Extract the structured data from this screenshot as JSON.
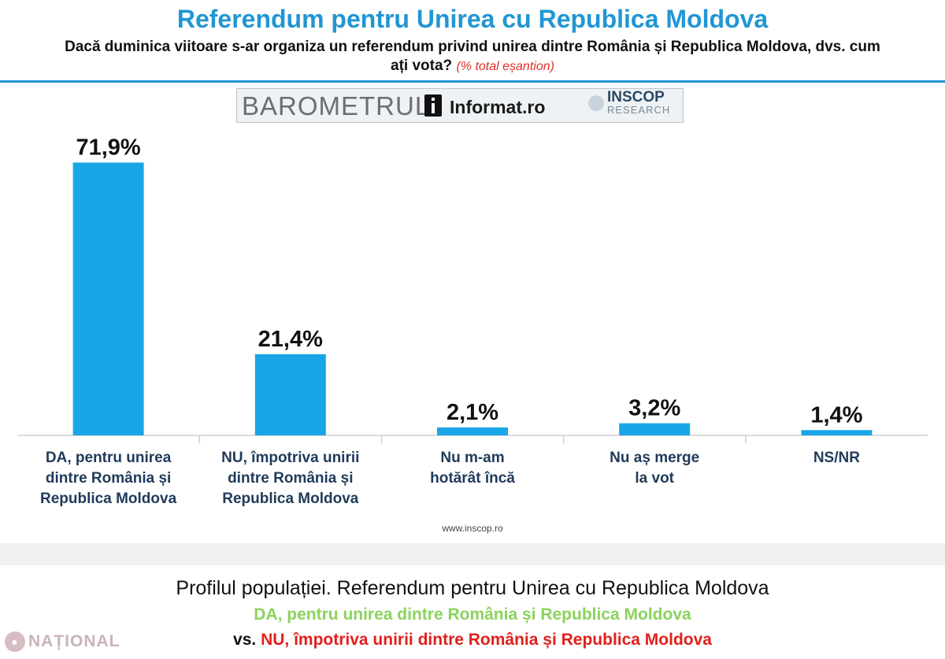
{
  "header": {
    "title": "Referendum pentru Unirea cu Republica Moldova",
    "question": "Dacă duminica viitoare s-ar organiza un referendum privind unirea dintre România și Republica Moldova, dvs. cum ați vota?",
    "note": "(% total eșantion)"
  },
  "logos": {
    "barometrul": "BAROMETRUL",
    "informat": "Informat.ro",
    "inscop": "INSCOP",
    "research": "RESEARCH"
  },
  "chart_data": {
    "type": "bar",
    "categories": [
      [
        "DA, pentru unirea",
        "dintre România și",
        "Republica Moldova"
      ],
      [
        "NU, împotriva unirii",
        "dintre România și",
        "Republica Moldova"
      ],
      [
        "Nu m-am",
        "hotărât încă"
      ],
      [
        "Nu aș merge",
        "la vot"
      ],
      [
        "NS/NR"
      ]
    ],
    "values": [
      71.9,
      21.4,
      2.1,
      3.2,
      1.4
    ],
    "value_labels": [
      "71,9%",
      "21,4%",
      "2,1%",
      "3,2%",
      "1,4%"
    ],
    "ylim": [
      0,
      72
    ],
    "grid": false,
    "bar_color": "#1aa6e6"
  },
  "source": "www.inscop.ro",
  "bottom": {
    "title": "Profilul populației. Referendum pentru Unirea cu Republica Moldova",
    "da_line": "DA, pentru unirea dintre România și Republica Moldova",
    "vs": "vs.",
    "nu_line": "NU, împotriva unirii dintre România și Republica Moldova"
  },
  "watermark": "NAȚIONAL",
  "colors": {
    "title_blue": "#2196d3",
    "note_red": "#e0312b",
    "da_green": "#8bd35c",
    "nu_red": "#e0201b"
  }
}
